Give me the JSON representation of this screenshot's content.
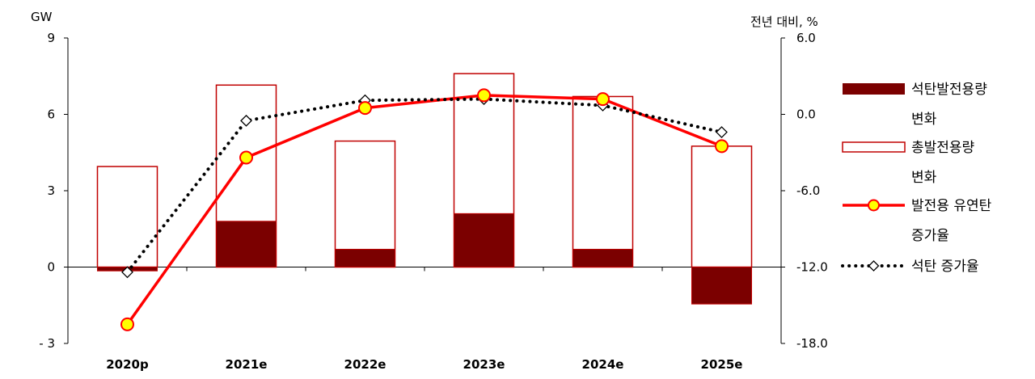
{
  "chart_data": {
    "type": "bar",
    "categories": [
      "2020p",
      "2021e",
      "2022e",
      "2023e",
      "2024e",
      "2025e"
    ],
    "left_axis": {
      "unit": "GW",
      "ticks": [
        "9",
        "6",
        "3",
        "0",
        "- 3"
      ],
      "ylim": [
        -3,
        9
      ]
    },
    "right_axis": {
      "unit": "전년 대비, %",
      "ticks": [
        "6.0",
        "0.0",
        "-6.0",
        "-12.0",
        "-18.0"
      ],
      "ylim": [
        -18,
        6
      ]
    },
    "series": [
      {
        "name": "석탄발전용량 변화",
        "type": "bar",
        "axis": "left",
        "style": "filled",
        "legend_lines": [
          "석탄발전용량",
          "변화"
        ],
        "values": [
          -0.15,
          1.8,
          0.7,
          2.1,
          0.7,
          -1.45
        ]
      },
      {
        "name": "총발전용량 변화",
        "type": "bar",
        "axis": "left",
        "style": "outline",
        "legend_lines": [
          "총발전용량",
          "변화"
        ],
        "values": [
          3.95,
          7.15,
          4.95,
          7.6,
          6.7,
          4.75
        ]
      },
      {
        "name": "발전용 유연탄 증가율",
        "type": "line",
        "axis": "right",
        "legend_lines": [
          "발전용 유연탄",
          "증가율"
        ],
        "values": [
          -16.5,
          -3.4,
          0.5,
          1.5,
          1.2,
          -2.5
        ]
      },
      {
        "name": "석탄 증가율",
        "type": "line",
        "axis": "right",
        "legend_lines": [
          "석탄 증가율"
        ],
        "values": [
          -12.4,
          -0.5,
          1.1,
          1.2,
          0.7,
          -1.4
        ]
      }
    ],
    "legend_position": "right",
    "grid": false
  },
  "colors": {
    "coal_bar": "#7b0000",
    "total_bar_outline": "#c00000",
    "bituminous_line": "#ff0000",
    "bituminous_marker_fill": "#ffff00",
    "coal_line": "#000000",
    "axis": "#000000"
  }
}
